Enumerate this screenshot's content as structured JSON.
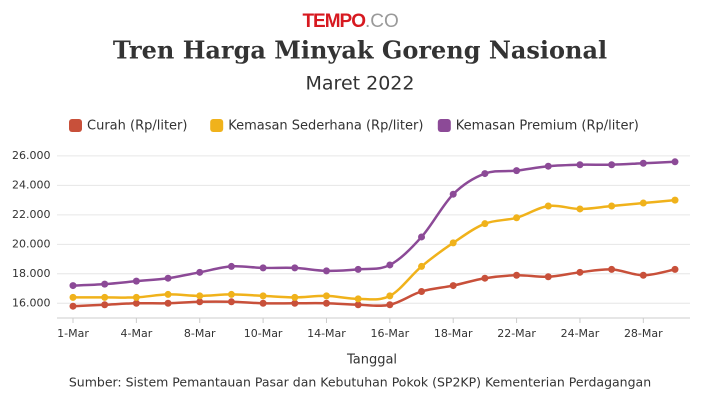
{
  "brand": {
    "name": "TEMPO",
    "suffix": ".CO"
  },
  "chart_data": {
    "type": "line",
    "title": "Tren Harga Minyak Goreng Nasional",
    "subtitle": "Maret 2022",
    "x_label": "Tanggal",
    "source": "Sumber: Sistem Pemantauan Pasar dan Kebutuhan Pokok (SP2KP) Kementerian Perdagangan",
    "categories": [
      "1-Mar",
      null,
      "4-Mar",
      null,
      "8-Mar",
      null,
      "10-Mar",
      null,
      "14-Mar",
      null,
      "16-Mar",
      null,
      "18-Mar",
      null,
      "22-Mar",
      null,
      "24-Mar",
      null,
      "28-Mar",
      null
    ],
    "series": [
      {
        "name": "Curah (Rp/liter)",
        "color": "#c8503a",
        "values": [
          15800,
          15900,
          16000,
          16000,
          16100,
          16100,
          16000,
          16000,
          16000,
          15900,
          15900,
          16800,
          17200,
          17700,
          17900,
          17800,
          18100,
          18300,
          17900,
          18300
        ]
      },
      {
        "name": "Kemasan Sederhana (Rp/liter)",
        "color": "#f0b21b",
        "values": [
          16400,
          16400,
          16400,
          16600,
          16500,
          16600,
          16500,
          16400,
          16500,
          16300,
          16500,
          18500,
          20100,
          21400,
          21800,
          22600,
          22400,
          22600,
          22800,
          23000
        ]
      },
      {
        "name": "Kemasan Premium (Rp/liter)",
        "color": "#8c4a97",
        "values": [
          17200,
          17300,
          17500,
          17700,
          18100,
          18500,
          18400,
          18400,
          18200,
          18300,
          18600,
          20500,
          23400,
          24800,
          25000,
          25300,
          25400,
          25400,
          25500,
          25600
        ]
      }
    ],
    "ylim": [
      15000,
      26400
    ],
    "yticks": [
      {
        "value": 16000,
        "label": "16.000"
      },
      {
        "value": 18000,
        "label": "18.000"
      },
      {
        "value": 20000,
        "label": "20.000"
      },
      {
        "value": 22000,
        "label": "22.000"
      },
      {
        "value": 24000,
        "label": "24.000"
      },
      {
        "value": 26000,
        "label": "26.000"
      }
    ],
    "grid": true
  }
}
